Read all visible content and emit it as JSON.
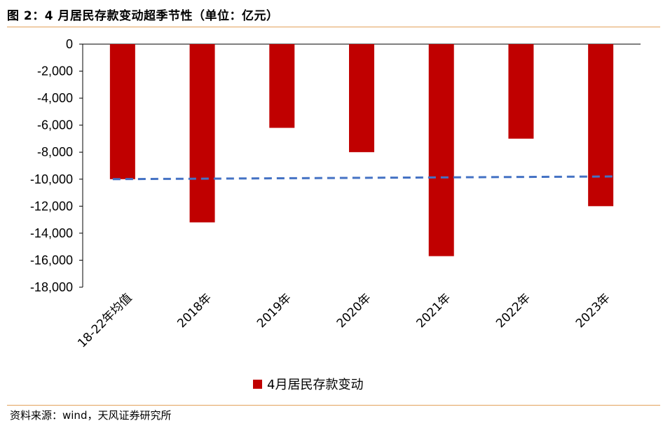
{
  "header": {
    "title": "图 2：4 月居民存款变动超季节性（单位：亿元）"
  },
  "footer": {
    "source": "资料来源：wind，天风证券研究所"
  },
  "colors": {
    "bar": "#c00000",
    "average_line": "#4472c4",
    "rule": "#e3a15b"
  },
  "chart_data": {
    "type": "bar",
    "title": "",
    "xlabel": "",
    "ylabel": "",
    "categories": [
      "18-22年均值",
      "2018年",
      "2019年",
      "2020年",
      "2021年",
      "2022年",
      "2023年"
    ],
    "series": [
      {
        "name": "4月居民存款变动",
        "values": [
          -10000,
          -13200,
          -6200,
          -8000,
          -15700,
          -7000,
          -12000
        ]
      }
    ],
    "average_line": {
      "style": "dashed",
      "from_value": -10000,
      "to_value": -9800
    },
    "y_ticks": [
      0,
      -2000,
      -4000,
      -6000,
      -8000,
      -10000,
      -12000,
      -14000,
      -16000,
      -18000
    ],
    "y_tick_labels": [
      "0",
      "-2,000",
      "-4,000",
      "-6,000",
      "-8,000",
      "-10,000",
      "-12,000",
      "-14,000",
      "-16,000",
      "-18,000"
    ],
    "ylim": [
      -18000,
      0
    ],
    "grid": false,
    "legend": "bottom-center"
  }
}
